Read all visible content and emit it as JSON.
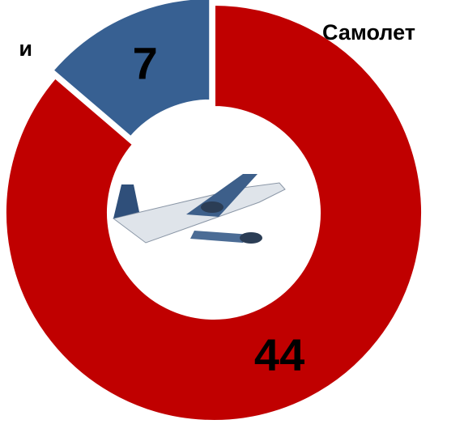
{
  "chart_data": {
    "type": "donut",
    "categories": [
      "Самолет",
      "и"
    ],
    "values": [
      44,
      7
    ],
    "colors": [
      "#c00000",
      "#376092"
    ]
  }
}
